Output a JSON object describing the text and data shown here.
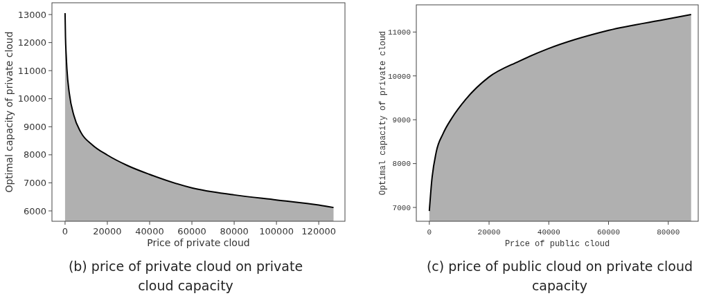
{
  "chart_data": [
    {
      "type": "area",
      "xlabel": "Price of private cloud",
      "ylabel": "Optimal capacity of private cloud",
      "x": [
        0,
        200,
        500,
        880,
        2000,
        4170,
        7470,
        12960,
        20000,
        29400,
        40000,
        60000,
        80000,
        100000,
        120000,
        127000
      ],
      "series": [
        {
          "color": "#000000",
          "values": [
            13050,
            12200,
            11600,
            11050,
            10200,
            9400,
            8800,
            8350,
            7990,
            7620,
            7300,
            6820,
            6570,
            6390,
            6210,
            6120
          ]
        }
      ],
      "xlim": [
        -6200,
        132400
      ],
      "ylim": [
        5630,
        13420
      ],
      "xticks": [
        0,
        20000,
        40000,
        60000,
        80000,
        100000,
        120000
      ],
      "yticks": [
        6000,
        7000,
        8000,
        9000,
        10000,
        11000,
        12000,
        13000
      ],
      "annotations": [
        "(b) price of private cloud on private cloud capacity"
      ]
    },
    {
      "type": "area",
      "xlabel": "Price of public cloud",
      "ylabel": "Optimal capacity of private cloud",
      "x": [
        0,
        770,
        2300,
        4590,
        7660,
        12250,
        19900,
        29900,
        39800,
        60100,
        80000,
        87650
      ],
      "series": [
        {
          "color": "#000000",
          "values": [
            6920,
            7580,
            8260,
            8680,
            9050,
            9470,
            9970,
            10330,
            10620,
            11040,
            11300,
            11400
          ]
        }
      ],
      "xlim": [
        -4360,
        90030
      ],
      "ylim": [
        6685,
        11620
      ],
      "xticks": [
        0,
        20000,
        40000,
        60000,
        80000
      ],
      "yticks": [
        7000,
        8000,
        9000,
        10000,
        11000
      ],
      "annotations": [
        "(c) price of public cloud on private cloud capacity"
      ]
    }
  ]
}
